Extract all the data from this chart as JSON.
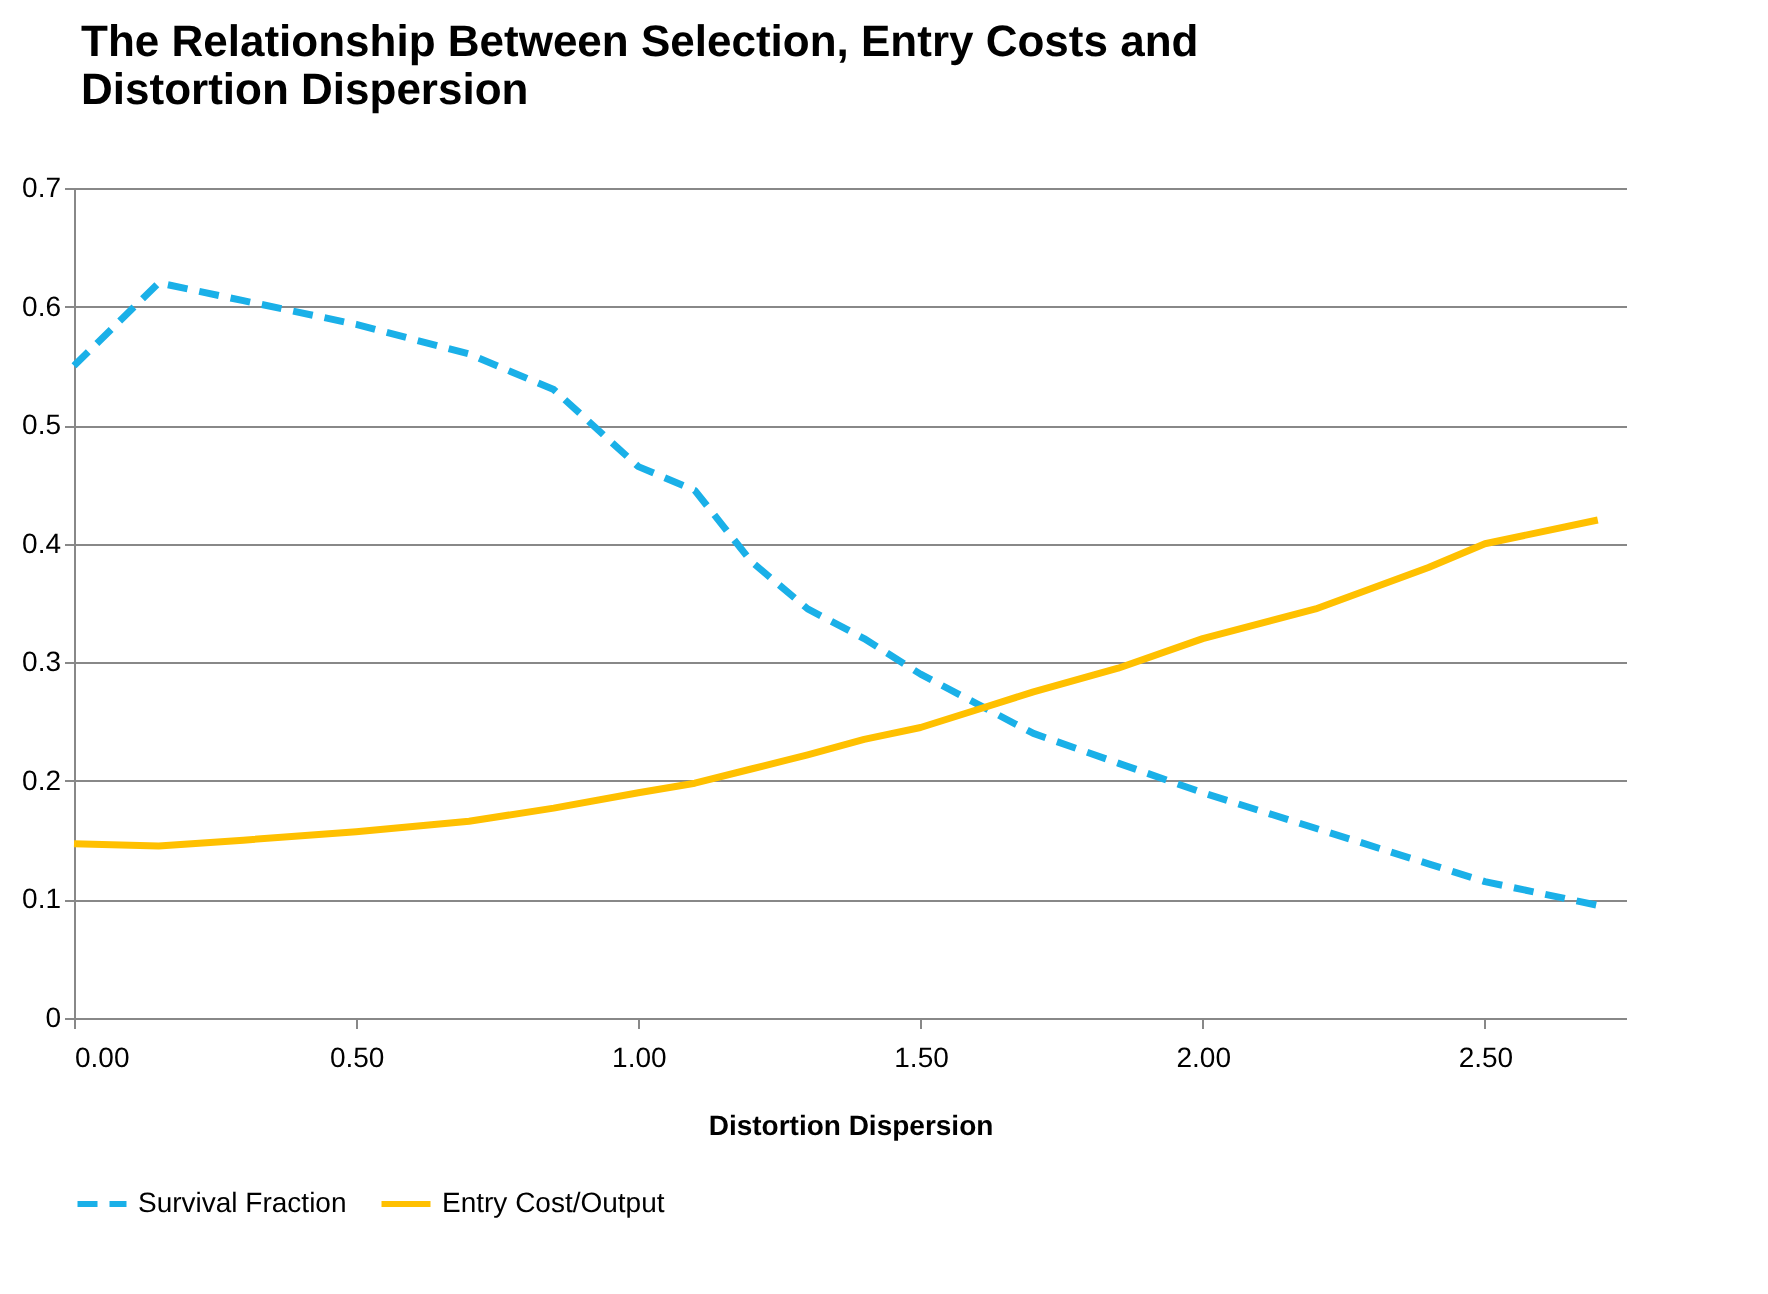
{
  "chart_data": {
    "type": "line",
    "title": "The Relationship Between Selection, Entry Costs and\nDistortion Dispersion",
    "xlabel": "Distortion Dispersion",
    "xlim": [
      0,
      2.75
    ],
    "xticks": [
      {
        "value": 0,
        "label": "0.00"
      },
      {
        "value": 0.5,
        "label": "0.50"
      },
      {
        "value": 1,
        "label": "1.00"
      },
      {
        "value": 1.5,
        "label": "1.50"
      },
      {
        "value": 2,
        "label": "2.00"
      },
      {
        "value": 2.5,
        "label": "2.50"
      }
    ],
    "ylim": [
      0,
      0.7
    ],
    "yticks": [
      0,
      0.1,
      0.2,
      0.3,
      0.4,
      0.5,
      0.6,
      0.7
    ],
    "grid": "y",
    "legend": "bottom",
    "marker": "none",
    "x": [
      0,
      0.15,
      0.3,
      0.5,
      0.7,
      0.85,
      1.0,
      1.1,
      1.2,
      1.3,
      1.4,
      1.5,
      1.6,
      1.7,
      1.85,
      2.0,
      2.2,
      2.4,
      2.5,
      2.7
    ],
    "series": [
      {
        "name": "Survival Fraction",
        "color": "#1ab0e8",
        "line_style": "dashed",
        "values": [
          0.55,
          0.62,
          0.605,
          0.585,
          0.56,
          0.53,
          0.465,
          0.445,
          0.385,
          0.345,
          0.32,
          0.29,
          0.265,
          0.24,
          0.215,
          0.19,
          0.16,
          0.13,
          0.115,
          0.095
        ]
      },
      {
        "name": "Entry Cost/Output",
        "color": "#ffc000",
        "line_style": "solid",
        "values": [
          0.147,
          0.145,
          0.15,
          0.157,
          0.166,
          0.177,
          0.19,
          0.198,
          0.21,
          0.222,
          0.235,
          0.245,
          0.26,
          0.275,
          0.295,
          0.32,
          0.345,
          0.38,
          0.4,
          0.42
        ]
      }
    ]
  }
}
